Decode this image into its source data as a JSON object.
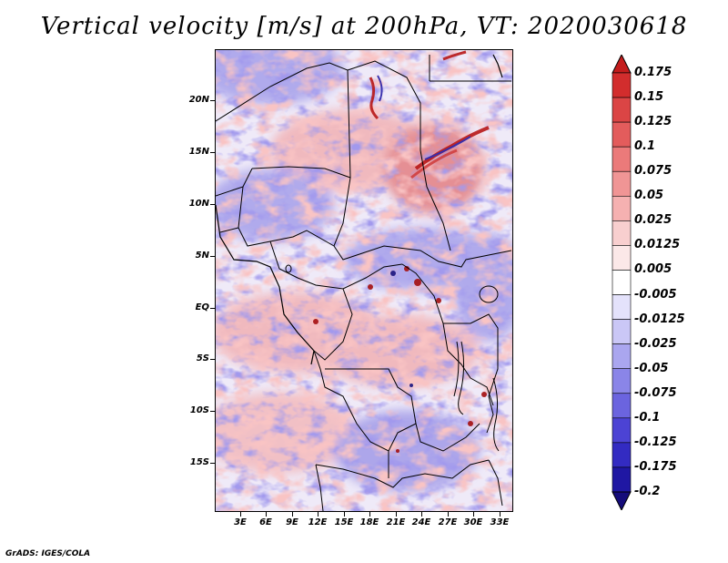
{
  "title": "Vertical velocity [m/s] at 200hPa, VT: 2020030618",
  "footer": "GrADS: IGES/COLA",
  "map": {
    "lat_labels": [
      "20N",
      "15N",
      "10N",
      "5N",
      "EQ",
      "5S",
      "10S",
      "15S"
    ],
    "lon_labels": [
      "3E",
      "6E",
      "9E",
      "12E",
      "15E",
      "18E",
      "21E",
      "24E",
      "27E",
      "30E",
      "33E"
    ],
    "lat_values": [
      20,
      15,
      10,
      5,
      0,
      -5,
      -10,
      -15
    ],
    "lon_values": [
      3,
      6,
      9,
      12,
      15,
      18,
      21,
      24,
      27,
      30,
      33
    ],
    "extent": {
      "lon_min": 0,
      "lon_max": 34.5,
      "lat_min": -19.8,
      "lat_max": 24.8
    }
  },
  "colorbar": {
    "labels": [
      "0.175",
      "0.15",
      "0.125",
      "0.1",
      "0.075",
      "0.05",
      "0.025",
      "0.0125",
      "0.005",
      "-0.005",
      "-0.0125",
      "-0.025",
      "-0.05",
      "-0.075",
      "-0.1",
      "-0.125",
      "-0.175",
      "-0.2"
    ],
    "colors": [
      "#c41d1d",
      "#d22d2d",
      "#db4545",
      "#e35c5c",
      "#eb7a7a",
      "#f09595",
      "#f5b1b1",
      "#f8cfcf",
      "#fbe8e8",
      "#ffffff",
      "#e4e2fb",
      "#cac7f6",
      "#aaa6ef",
      "#8a85e8",
      "#6b64df",
      "#4c43d4",
      "#332bc2",
      "#1f17a3",
      "#150c7a"
    ]
  },
  "colors": {
    "positive": "#e36a6a",
    "negative": "#5b52d8",
    "strong_positive": "#a50f0f",
    "strong_negative": "#1a1480",
    "border": "#000000"
  }
}
